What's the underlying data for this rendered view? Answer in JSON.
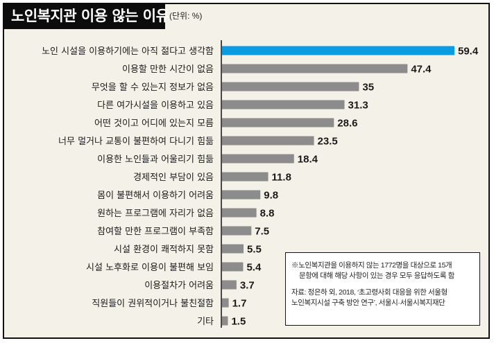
{
  "chart_data": {
    "type": "bar",
    "orientation": "horizontal",
    "title": "노인복지관 이용 않는 이유",
    "unit_label": "(단위: %)",
    "categories": [
      "노인 시설을 이용하기에는 아직 젊다고 생각함",
      "이용할 만한 시간이 없음",
      "무엇을 할 수 있는지 정보가 없음",
      "다른 여가시설을 이용하고 있음",
      "어떤 것이고 어디에 있는지 모름",
      "너무 멀거나 교통이 불편하여 다니기 힘듦",
      "이용한 노인들과 어울리기 힘듦",
      "경제적인 부담이 있음",
      "몸이 불편해서 이용하기 어려움",
      "원하는 프로그램에 자리가 없음",
      "참여할 만한 프로그램이 부족함",
      "시설 환경이 쾌적하지 못함",
      "시설 노후화로 이용이 불편해 보임",
      "이용절차가 어려움",
      "직원들이 권위적이거나 불친절함",
      "기타"
    ],
    "values": [
      59.4,
      47.4,
      35,
      31.3,
      28.6,
      23.5,
      18.4,
      11.8,
      9.8,
      8.8,
      7.5,
      5.5,
      5.4,
      3.7,
      1.7,
      1.5
    ],
    "value_labels": [
      "59.4",
      "47.4",
      "35",
      "31.3",
      "28.6",
      "23.5",
      "18.4",
      "11.8",
      "9.8",
      "8.8",
      "7.5",
      "5.5",
      "5.4",
      "3.7",
      "1.7",
      "1.5"
    ],
    "xlim": [
      0,
      59.4
    ],
    "highlight_index": 0,
    "colors": {
      "highlight": "#0b9be0",
      "default": "#8c8c8c"
    },
    "grid": false,
    "legend": "none"
  },
  "note": {
    "line1": "※노인복지관을 이용하지 않는 1772명을 대상으로 15개",
    "line2": "문항에 대해 해당 사항이 있는 경우 모두 응답하도록 함",
    "source1": "자료: 정은하 외, 2018, ‘초고령사회 대응을 위한 서울형",
    "source2": "노인복지시설 구축 방안 연구’, 서울시·서울시복지재단"
  }
}
